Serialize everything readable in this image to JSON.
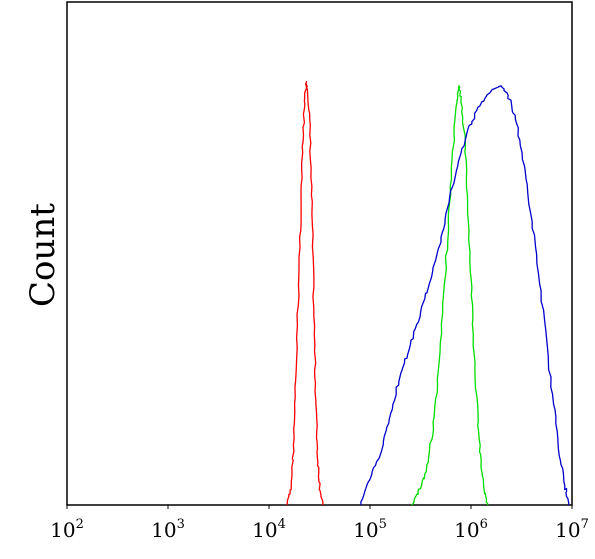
{
  "chart_data": {
    "type": "line",
    "title": "",
    "xlabel": "",
    "ylabel": "Count",
    "x_scale": "log10",
    "xlim": [
      100,
      10000000
    ],
    "ylim": [
      0,
      1.2
    ],
    "grid": false,
    "legend": "none",
    "x_ticks": [
      {
        "base": "10",
        "exp": "2",
        "value": 100
      },
      {
        "base": "10",
        "exp": "3",
        "value": 1000
      },
      {
        "base": "10",
        "exp": "4",
        "value": 10000
      },
      {
        "base": "10",
        "exp": "5",
        "value": 100000
      },
      {
        "base": "10",
        "exp": "6",
        "value": 1000000
      },
      {
        "base": "10",
        "exp": "7",
        "value": 10000000
      }
    ],
    "series": [
      {
        "color": "#ff0000",
        "points": [
          [
            15000,
            0
          ],
          [
            16500,
            0.04
          ],
          [
            17500,
            0.14
          ],
          [
            18500,
            0.3
          ],
          [
            19500,
            0.5
          ],
          [
            20500,
            0.68
          ],
          [
            21500,
            0.84
          ],
          [
            22500,
            0.96
          ],
          [
            23500,
            1.01
          ],
          [
            24500,
            0.98
          ],
          [
            25500,
            0.88
          ],
          [
            26500,
            0.72
          ],
          [
            27500,
            0.52
          ],
          [
            28500,
            0.34
          ],
          [
            29500,
            0.2
          ],
          [
            30500,
            0.1
          ],
          [
            32000,
            0.04
          ],
          [
            34000,
            0
          ]
        ]
      },
      {
        "color": "#00dd00",
        "points": [
          [
            260000,
            0
          ],
          [
            300000,
            0.03
          ],
          [
            360000,
            0.08
          ],
          [
            420000,
            0.18
          ],
          [
            480000,
            0.32
          ],
          [
            540000,
            0.5
          ],
          [
            600000,
            0.68
          ],
          [
            660000,
            0.84
          ],
          [
            720000,
            0.96
          ],
          [
            760000,
            1.0
          ],
          [
            800000,
            0.97
          ],
          [
            860000,
            0.88
          ],
          [
            930000,
            0.72
          ],
          [
            1000000,
            0.54
          ],
          [
            1080000,
            0.36
          ],
          [
            1170000,
            0.2
          ],
          [
            1260000,
            0.09
          ],
          [
            1360000,
            0.03
          ],
          [
            1460000,
            0
          ]
        ]
      },
      {
        "color": "#0000cc",
        "points": [
          [
            80000,
            0
          ],
          [
            100000,
            0.06
          ],
          [
            130000,
            0.13
          ],
          [
            160000,
            0.22
          ],
          [
            200000,
            0.31
          ],
          [
            250000,
            0.38
          ],
          [
            320000,
            0.46
          ],
          [
            400000,
            0.54
          ],
          [
            500000,
            0.63
          ],
          [
            600000,
            0.72
          ],
          [
            750000,
            0.82
          ],
          [
            950000,
            0.9
          ],
          [
            1200000,
            0.95
          ],
          [
            1600000,
            0.99
          ],
          [
            2000000,
            1.0
          ],
          [
            2400000,
            0.97
          ],
          [
            2900000,
            0.9
          ],
          [
            3500000,
            0.78
          ],
          [
            4300000,
            0.62
          ],
          [
            5300000,
            0.44
          ],
          [
            6400000,
            0.26
          ],
          [
            7600000,
            0.12
          ],
          [
            8600000,
            0.04
          ],
          [
            9300000,
            0
          ]
        ]
      }
    ]
  }
}
